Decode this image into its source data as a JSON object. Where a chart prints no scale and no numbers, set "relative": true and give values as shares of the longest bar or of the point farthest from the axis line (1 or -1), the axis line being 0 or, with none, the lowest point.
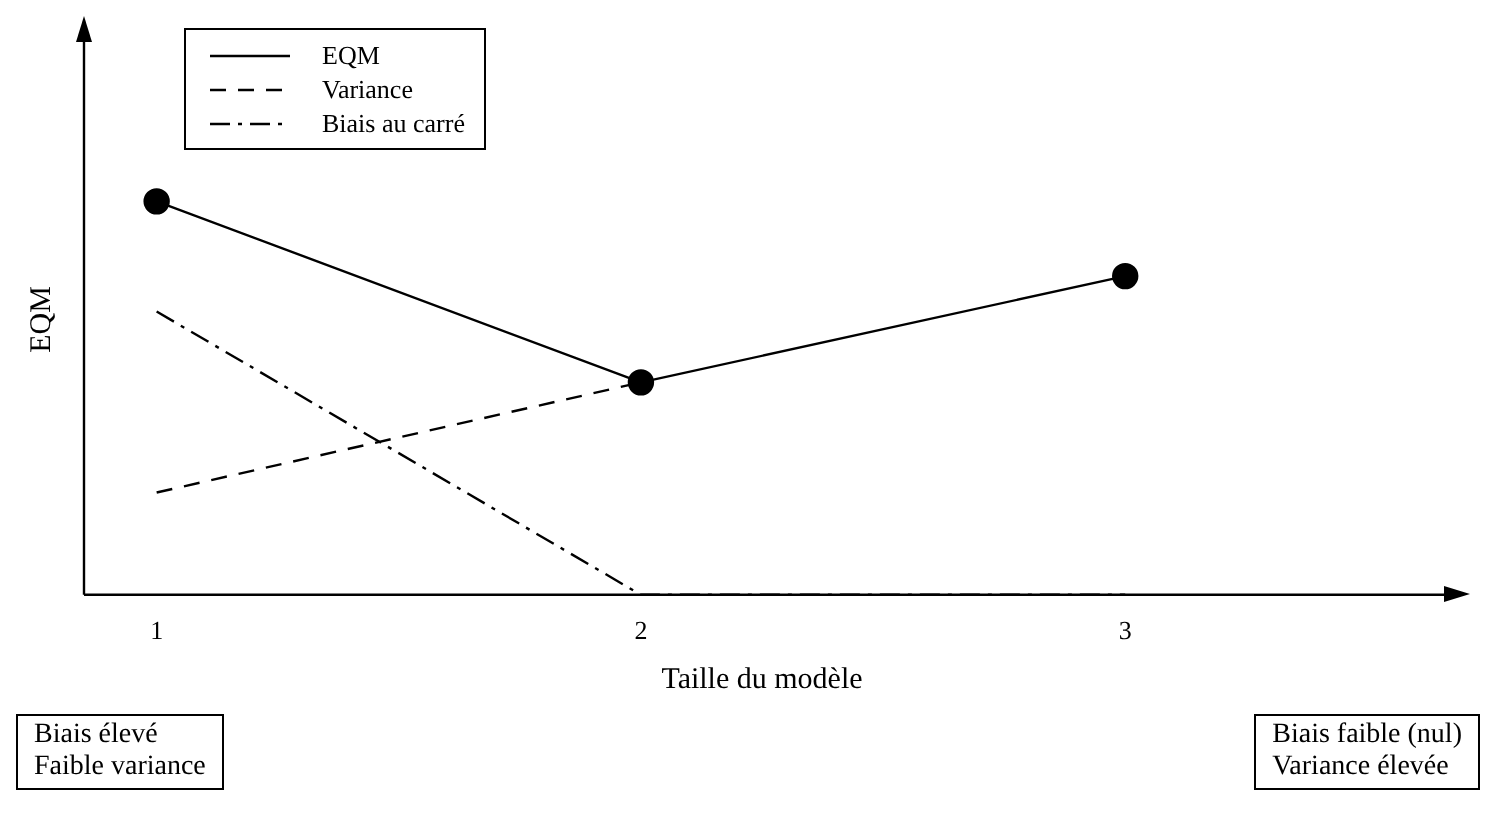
{
  "chart_data": {
    "type": "line",
    "relative": true,
    "xlabel": "Taille du modèle",
    "ylabel": "EQM",
    "categories": [
      "1",
      "2",
      "3"
    ],
    "legend": "top left",
    "grid": false,
    "series": [
      {
        "name": "EQM",
        "color": "#000000",
        "values": [
          1,
          0.54,
          0.81
        ],
        "line_style": "solid",
        "marker": "circle"
      },
      {
        "name": "Variance",
        "color": "#000000",
        "values": [
          0.26,
          0.54,
          null
        ],
        "line_style": "dashed"
      },
      {
        "name": "Biais au carré",
        "color": "#000000",
        "values": [
          0.72,
          0,
          0
        ],
        "line_style": "dashdot"
      }
    ],
    "annotations": [
      "Biais élevé\nFaible variance",
      "Biais faible (nul)\nVariance élevée"
    ]
  }
}
